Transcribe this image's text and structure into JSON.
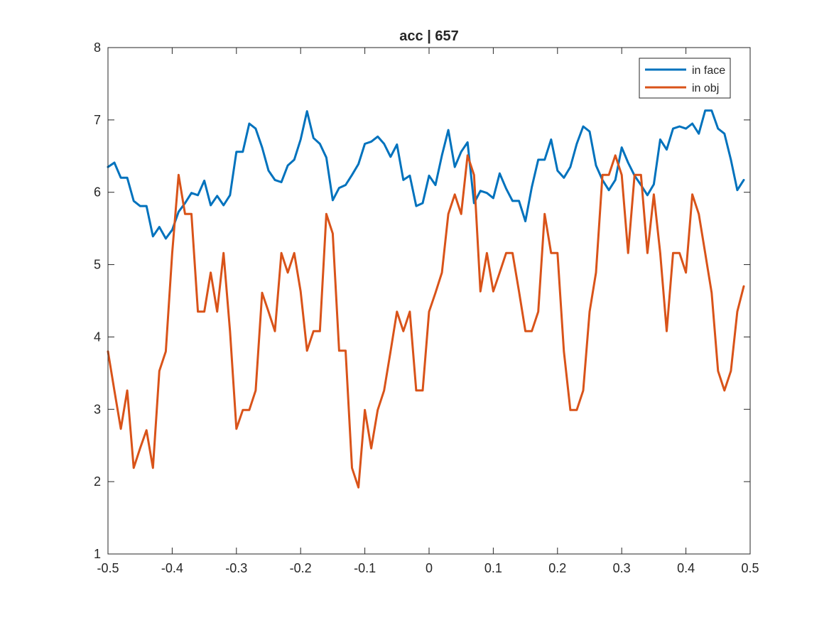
{
  "chart_data": {
    "type": "line",
    "title": "acc | 657",
    "xlabel": "",
    "ylabel": "",
    "xlim": [
      -0.5,
      0.5
    ],
    "ylim": [
      1,
      8
    ],
    "xticks": [
      -0.5,
      -0.4,
      -0.3,
      -0.2,
      -0.1,
      0,
      0.1,
      0.2,
      0.3,
      0.4,
      0.5
    ],
    "xtick_labels": [
      "-0.5",
      "-0.4",
      "-0.3",
      "-0.2",
      "-0.1",
      "0",
      "0.1",
      "0.2",
      "0.3",
      "0.4",
      "0.5"
    ],
    "yticks": [
      1,
      2,
      3,
      4,
      5,
      6,
      7,
      8
    ],
    "ytick_labels": [
      "1",
      "2",
      "3",
      "4",
      "5",
      "6",
      "7",
      "8"
    ],
    "grid": false,
    "legend_position": "top-right",
    "x": [
      -0.5,
      -0.49,
      -0.48,
      -0.47,
      -0.46,
      -0.45,
      -0.44,
      -0.43,
      -0.42,
      -0.41,
      -0.4,
      -0.39,
      -0.38,
      -0.37,
      -0.36,
      -0.35,
      -0.34,
      -0.33,
      -0.32,
      -0.31,
      -0.3,
      -0.29,
      -0.28,
      -0.27,
      -0.26,
      -0.25,
      -0.24,
      -0.23,
      -0.22,
      -0.21,
      -0.2,
      -0.19,
      -0.18,
      -0.17,
      -0.16,
      -0.15,
      -0.14,
      -0.13,
      -0.12,
      -0.11,
      -0.1,
      -0.09,
      -0.08,
      -0.07,
      -0.06,
      -0.05,
      -0.04,
      -0.03,
      -0.02,
      -0.01,
      0,
      0.01,
      0.02,
      0.03,
      0.04,
      0.05,
      0.06,
      0.07,
      0.08,
      0.09,
      0.1,
      0.11,
      0.12,
      0.13,
      0.14,
      0.15,
      0.16,
      0.17,
      0.18,
      0.19,
      0.2,
      0.21,
      0.22,
      0.23,
      0.24,
      0.25,
      0.26,
      0.27,
      0.28,
      0.29,
      0.3,
      0.31,
      0.32,
      0.33,
      0.34,
      0.35,
      0.36,
      0.37,
      0.38,
      0.39,
      0.4,
      0.41,
      0.42,
      0.43,
      0.44,
      0.45,
      0.46,
      0.47,
      0.48,
      0.49
    ],
    "series": [
      {
        "name": "in face",
        "color": "#0072BD",
        "values": [
          6.35,
          6.41,
          6.2,
          6.2,
          5.88,
          5.81,
          5.81,
          5.39,
          5.52,
          5.36,
          5.48,
          5.73,
          5.85,
          5.99,
          5.96,
          6.16,
          5.82,
          5.95,
          5.82,
          5.96,
          6.56,
          6.56,
          6.95,
          6.88,
          6.62,
          6.3,
          6.17,
          6.14,
          6.37,
          6.45,
          6.73,
          7.12,
          6.75,
          6.67,
          6.48,
          5.89,
          6.06,
          6.1,
          6.24,
          6.39,
          6.67,
          6.7,
          6.77,
          6.67,
          6.49,
          6.66,
          6.17,
          6.23,
          5.81,
          5.85,
          6.23,
          6.1,
          6.51,
          6.86,
          6.35,
          6.56,
          6.69,
          5.85,
          6.02,
          5.99,
          5.92,
          6.26,
          6.05,
          5.88,
          5.88,
          5.6,
          6.07,
          6.45,
          6.45,
          6.73,
          6.3,
          6.2,
          6.35,
          6.67,
          6.91,
          6.84,
          6.37,
          6.17,
          6.03,
          6.17,
          6.62,
          6.41,
          6.23,
          6.1,
          5.96,
          6.11,
          6.73,
          6.59,
          6.88,
          6.91,
          6.88,
          6.95,
          6.81,
          7.13,
          7.13,
          6.88,
          6.81,
          6.45,
          6.03,
          6.17
        ]
      },
      {
        "name": "in obj",
        "color": "#D95319",
        "values": [
          3.8,
          3.26,
          2.73,
          3.26,
          2.19,
          2.46,
          2.71,
          2.19,
          3.53,
          3.8,
          5.16,
          6.24,
          5.7,
          5.7,
          4.35,
          4.35,
          4.89,
          4.35,
          5.16,
          4.08,
          2.73,
          2.99,
          2.99,
          3.26,
          4.61,
          4.35,
          4.08,
          5.16,
          4.89,
          5.16,
          4.63,
          3.81,
          4.08,
          4.08,
          5.7,
          5.43,
          3.81,
          3.81,
          2.19,
          1.92,
          2.99,
          2.46,
          2.99,
          3.26,
          3.8,
          4.35,
          4.08,
          4.35,
          3.26,
          3.26,
          4.35,
          4.61,
          4.89,
          5.7,
          5.97,
          5.7,
          6.51,
          6.24,
          4.63,
          5.16,
          4.63,
          4.89,
          5.16,
          5.16,
          4.63,
          4.08,
          4.08,
          4.35,
          5.7,
          5.16,
          5.16,
          3.8,
          2.99,
          2.99,
          3.26,
          4.35,
          4.89,
          6.24,
          6.24,
          6.51,
          6.24,
          5.16,
          6.24,
          6.24,
          5.16,
          5.97,
          5.16,
          4.08,
          5.16,
          5.16,
          4.89,
          5.97,
          5.7,
          5.16,
          4.61,
          3.53,
          3.26,
          3.53,
          4.35,
          4.7
        ]
      }
    ]
  }
}
